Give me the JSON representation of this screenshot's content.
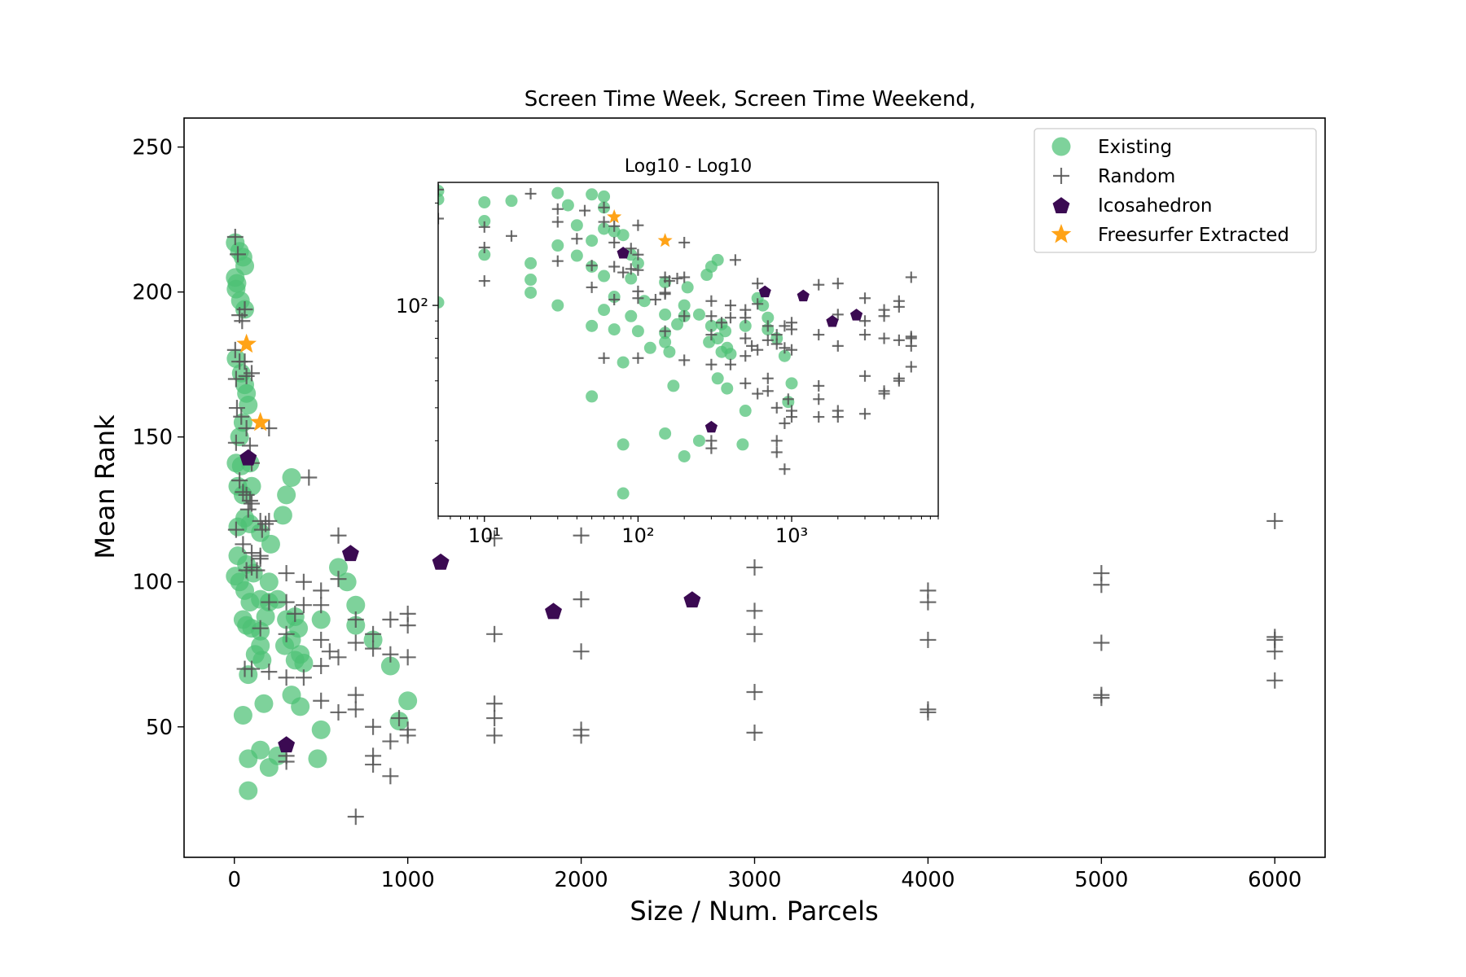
{
  "chart_data": [
    {
      "type": "scatter",
      "title": "Screen Time Week, Screen Time Weekend,",
      "xlabel": "Size / Num. Parcels",
      "ylabel": "Mean Rank",
      "xlim": [
        -290,
        6290
      ],
      "ylim": [
        5,
        260
      ],
      "xticks": [
        0,
        1000,
        2000,
        3000,
        4000,
        5000,
        6000
      ],
      "xtick_labels": [
        "0",
        "1000",
        "2000",
        "3000",
        "4000",
        "5000",
        "6000"
      ],
      "yticks": [
        50,
        100,
        150,
        200,
        250
      ],
      "ytick_labels": [
        "50",
        "100",
        "150",
        "200",
        "250"
      ],
      "grid": false,
      "legend_position": "top-right",
      "legend": [
        "Existing",
        "Random",
        "Icosahedron",
        "Freesurfer Extracted"
      ],
      "series": [
        {
          "name": "Existing",
          "marker": "circle",
          "color": "#4cc175",
          "points": [
            [
              5,
              217
            ],
            [
              30,
              214
            ],
            [
              50,
              212
            ],
            [
              60,
              209
            ],
            [
              5,
              205
            ],
            [
              10,
              201
            ],
            [
              15,
              203
            ],
            [
              35,
              197
            ],
            [
              60,
              194
            ],
            [
              10,
              177
            ],
            [
              40,
              172
            ],
            [
              60,
              168
            ],
            [
              70,
              165
            ],
            [
              80,
              161
            ],
            [
              30,
              150
            ],
            [
              50,
              155
            ],
            [
              10,
              141
            ],
            [
              40,
              140
            ],
            [
              90,
              141
            ],
            [
              20,
              133
            ],
            [
              50,
              130
            ],
            [
              100,
              133
            ],
            [
              60,
              122
            ],
            [
              20,
              119
            ],
            [
              90,
              120
            ],
            [
              150,
              117
            ],
            [
              210,
              113
            ],
            [
              20,
              109
            ],
            [
              70,
              106
            ],
            [
              110,
              103
            ],
            [
              5,
              102
            ],
            [
              30,
              100
            ],
            [
              60,
              97
            ],
            [
              90,
              93
            ],
            [
              150,
              94
            ],
            [
              200,
              100
            ],
            [
              250,
              94
            ],
            [
              350,
              88
            ],
            [
              500,
              87
            ],
            [
              600,
              105
            ],
            [
              650,
              100
            ],
            [
              700,
              92
            ],
            [
              300,
              130
            ],
            [
              330,
              136
            ],
            [
              280,
              123
            ],
            [
              50,
              87
            ],
            [
              100,
              84
            ],
            [
              70,
              85
            ],
            [
              150,
              83
            ],
            [
              180,
              88
            ],
            [
              200,
              93
            ],
            [
              300,
              87
            ],
            [
              330,
              80
            ],
            [
              370,
              84
            ],
            [
              400,
              72
            ],
            [
              350,
              73
            ],
            [
              380,
              75
            ],
            [
              290,
              78
            ],
            [
              150,
              78
            ],
            [
              120,
              75
            ],
            [
              160,
              73
            ],
            [
              80,
              68
            ],
            [
              700,
              85
            ],
            [
              800,
              80
            ],
            [
              900,
              71
            ],
            [
              950,
              52
            ],
            [
              1000,
              59
            ],
            [
              330,
              61
            ],
            [
              380,
              57
            ],
            [
              500,
              49
            ],
            [
              170,
              58
            ],
            [
              50,
              54
            ],
            [
              80,
              39
            ],
            [
              150,
              42
            ],
            [
              200,
              36
            ],
            [
              250,
              40
            ],
            [
              480,
              39
            ],
            [
              80,
              28
            ]
          ]
        },
        {
          "name": "Random",
          "marker": "plus",
          "color": "#555555",
          "points": [
            [
              5,
              219
            ],
            [
              20,
              213
            ],
            [
              30,
              192
            ],
            [
              45,
              190
            ],
            [
              60,
              194
            ],
            [
              5,
              180
            ],
            [
              30,
              176
            ],
            [
              60,
              176
            ],
            [
              70,
              171
            ],
            [
              100,
              172
            ],
            [
              10,
              170
            ],
            [
              15,
              160
            ],
            [
              40,
              157
            ],
            [
              70,
              153
            ],
            [
              10,
              148
            ],
            [
              90,
              147
            ],
            [
              100,
              141
            ],
            [
              200,
              153
            ],
            [
              30,
              135
            ],
            [
              50,
              131
            ],
            [
              70,
              130
            ],
            [
              90,
              128
            ],
            [
              100,
              127
            ],
            [
              80,
              125
            ],
            [
              150,
              121
            ],
            [
              160,
              118
            ],
            [
              180,
              120
            ],
            [
              200,
              121
            ],
            [
              430,
              136
            ],
            [
              600,
              116
            ],
            [
              1500,
              115
            ],
            [
              2000,
              116
            ],
            [
              6000,
              121
            ],
            [
              10,
              118
            ],
            [
              50,
              113
            ],
            [
              100,
              110
            ],
            [
              150,
              109
            ],
            [
              70,
              104
            ],
            [
              100,
              105
            ],
            [
              130,
              104
            ],
            [
              150,
              108
            ],
            [
              300,
              103
            ],
            [
              400,
              100
            ],
            [
              500,
              97
            ],
            [
              600,
              101
            ],
            [
              200,
              93
            ],
            [
              300,
              93
            ],
            [
              350,
              89
            ],
            [
              400,
              92
            ],
            [
              500,
              92
            ],
            [
              700,
              87
            ],
            [
              800,
              82
            ],
            [
              900,
              87
            ],
            [
              1000,
              89
            ],
            [
              1000,
              85
            ],
            [
              2000,
              94
            ],
            [
              3000,
              105
            ],
            [
              3000,
              90
            ],
            [
              4000,
              97
            ],
            [
              4000,
              93
            ],
            [
              5000,
              103
            ],
            [
              5000,
              99
            ],
            [
              6000,
              81
            ],
            [
              6000,
              80
            ],
            [
              6000,
              76
            ],
            [
              150,
              84
            ],
            [
              300,
              82
            ],
            [
              500,
              80
            ],
            [
              550,
              76
            ],
            [
              600,
              74
            ],
            [
              700,
              79
            ],
            [
              800,
              77
            ],
            [
              900,
              75
            ],
            [
              1000,
              74
            ],
            [
              1500,
              82
            ],
            [
              2000,
              76
            ],
            [
              3000,
              82
            ],
            [
              4000,
              80
            ],
            [
              5000,
              79
            ],
            [
              60,
              70
            ],
            [
              100,
              70
            ],
            [
              200,
              69
            ],
            [
              300,
              67
            ],
            [
              400,
              67
            ],
            [
              500,
              71
            ],
            [
              500,
              59
            ],
            [
              700,
              61
            ],
            [
              700,
              56
            ],
            [
              600,
              55
            ],
            [
              800,
              50
            ],
            [
              900,
              45
            ],
            [
              800,
              40
            ],
            [
              800,
              37
            ],
            [
              900,
              33
            ],
            [
              950,
              53
            ],
            [
              1000,
              49
            ],
            [
              1000,
              47
            ],
            [
              1500,
              58
            ],
            [
              1500,
              53
            ],
            [
              1500,
              47
            ],
            [
              2000,
              49
            ],
            [
              2000,
              47
            ],
            [
              3000,
              62
            ],
            [
              3000,
              48
            ],
            [
              4000,
              56
            ],
            [
              4000,
              55
            ],
            [
              5000,
              61
            ],
            [
              5000,
              60
            ],
            [
              6000,
              66
            ],
            [
              300,
              40
            ],
            [
              300,
              38
            ],
            [
              700,
              19
            ]
          ]
        },
        {
          "name": "Icosahedron",
          "marker": "pentagon",
          "color": "#3b0a52",
          "points": [
            [
              80,
              143
            ],
            [
              670,
              110
            ],
            [
              1190,
              107
            ],
            [
              1840,
              90
            ],
            [
              2640,
              94
            ],
            [
              300,
              44
            ]
          ]
        },
        {
          "name": "Freesurfer Extracted",
          "marker": "star",
          "color": "#ffa317",
          "points": [
            [
              70,
              182
            ],
            [
              150,
              155
            ]
          ]
        }
      ]
    },
    {
      "type": "scatter",
      "title": "Log10 - Log10",
      "xscale": "log",
      "yscale": "log",
      "xlim": [
        5,
        9000
      ],
      "ylim": [
        24,
        230
      ],
      "xtick_labels": [
        "10¹",
        "10²",
        "10³"
      ],
      "ytick_labels": [
        "10²"
      ],
      "note": "inset shows the same data as the main plot on log-log axes"
    }
  ]
}
